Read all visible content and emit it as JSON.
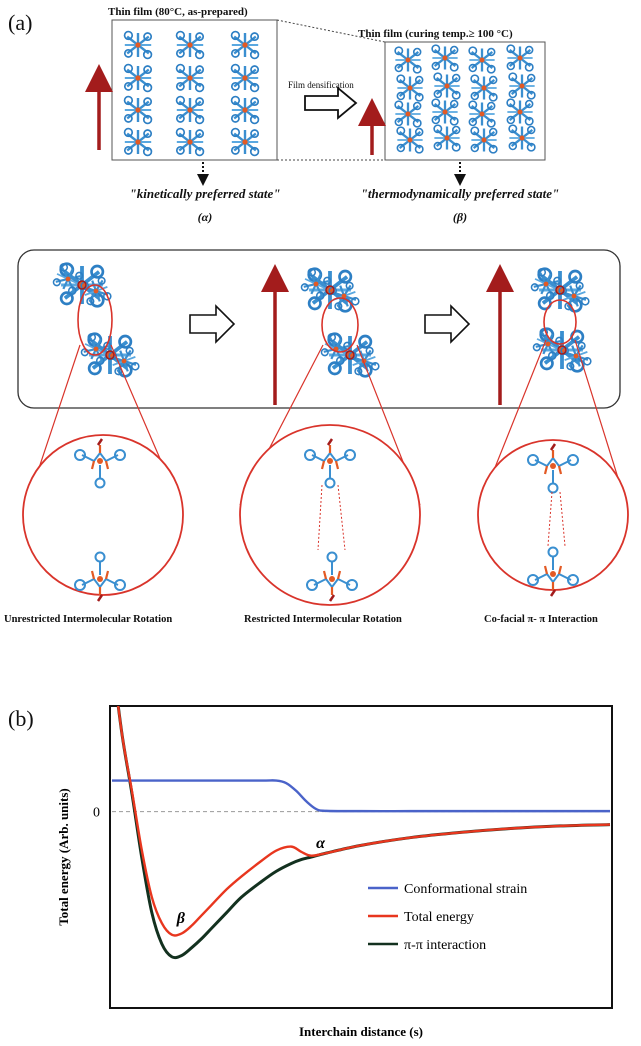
{
  "panel_a": {
    "label": "(a)",
    "film_left_title": "Thin film (80°C, as-prepared)",
    "film_right_title": "Thin film (curing temp.≥ 100 °C)",
    "arrow_label": "Film densification",
    "state_left": "\"kinetically preferred state\"",
    "state_left_symbol": "(α)",
    "state_right": "\"thermodynamically preferred state\"",
    "state_right_symbol": "(β)",
    "captions": [
      "Unrestricted Intermolecular Rotation",
      "Restricted Intermolecular Rotation",
      "Co-facial π- π Interaction"
    ],
    "colors": {
      "molecule": "#3a8fd0",
      "accent": "#e35a24",
      "arrow": "#a31c1c"
    }
  },
  "panel_b": {
    "label": "(b)",
    "chart_data": {
      "type": "line",
      "xlabel": "Interchain distance (s)",
      "ylabel": "Total energy (Arb. units)",
      "y_tick": "0",
      "x_range": [
        0,
        10
      ],
      "y_range": [
        -7.5,
        4
      ],
      "annotations": [
        {
          "text": "β",
          "x": 1.3,
          "y": -4.3
        },
        {
          "text": "α",
          "x": 4.1,
          "y": -1.4
        }
      ],
      "series": [
        {
          "name": "Conformational strain",
          "color": "#4a63c9",
          "x": [
            0,
            1,
            2,
            3,
            3.3,
            3.5,
            3.7,
            3.9,
            4.1,
            4.3,
            5,
            6,
            7,
            8,
            9,
            10
          ],
          "y": [
            1.2,
            1.2,
            1.2,
            1.2,
            1.2,
            1.1,
            0.8,
            0.4,
            0.1,
            0.03,
            0.02,
            0.02,
            0.02,
            0.02,
            0.02,
            0.02
          ]
        },
        {
          "name": "Total energy",
          "color": "#e8361e",
          "x": [
            0,
            0.2,
            0.4,
            0.6,
            0.8,
            1.0,
            1.2,
            1.4,
            1.6,
            1.8,
            2.0,
            2.3,
            2.6,
            3.0,
            3.3,
            3.6,
            3.8,
            4.0,
            4.3,
            5,
            6,
            7,
            8,
            9,
            10
          ],
          "y": [
            6,
            3.0,
            0.8,
            -1.5,
            -3.3,
            -4.3,
            -4.75,
            -4.7,
            -4.4,
            -4.0,
            -3.6,
            -3.0,
            -2.5,
            -1.9,
            -1.5,
            -1.35,
            -1.55,
            -1.7,
            -1.6,
            -1.3,
            -1.0,
            -0.8,
            -0.65,
            -0.55,
            -0.5
          ]
        },
        {
          "name": "π-π interaction",
          "color": "#13311f",
          "x": [
            0,
            0.2,
            0.4,
            0.6,
            0.8,
            1.0,
            1.2,
            1.4,
            1.6,
            1.8,
            2.0,
            2.3,
            2.6,
            3.0,
            3.3,
            3.6,
            3.8,
            4.0,
            4.3,
            5,
            6,
            7,
            8,
            9,
            10
          ],
          "y": [
            6,
            3.0,
            0.7,
            -1.8,
            -3.9,
            -5.1,
            -5.6,
            -5.55,
            -5.25,
            -4.9,
            -4.5,
            -3.9,
            -3.3,
            -2.7,
            -2.3,
            -2.0,
            -1.85,
            -1.75,
            -1.6,
            -1.3,
            -1.0,
            -0.8,
            -0.65,
            -0.55,
            -0.5
          ]
        }
      ]
    }
  }
}
